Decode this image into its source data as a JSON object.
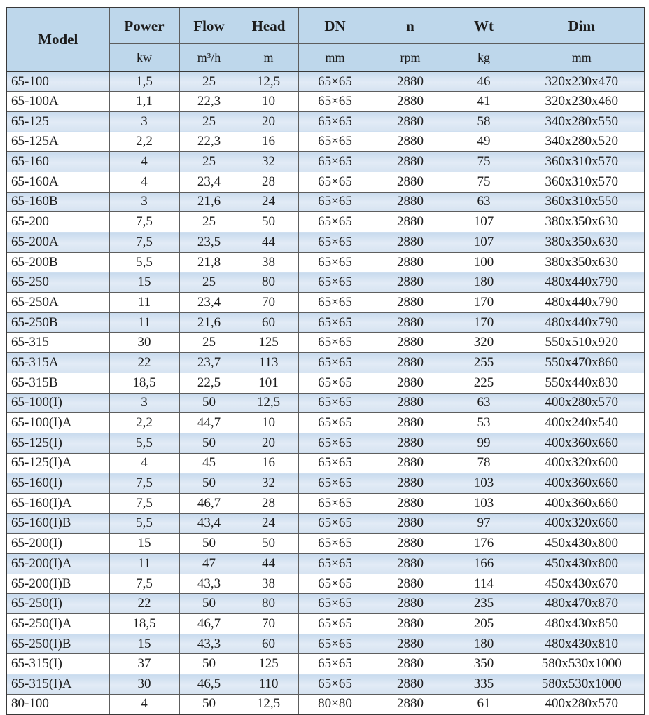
{
  "table": {
    "columns": [
      {
        "label": "Model",
        "unit": ""
      },
      {
        "label": "Power",
        "unit": "kw"
      },
      {
        "label": "Flow",
        "unit": "m³/h"
      },
      {
        "label": "Head",
        "unit": "m"
      },
      {
        "label": "DN",
        "unit": "mm"
      },
      {
        "label": "n",
        "unit": "rpm"
      },
      {
        "label": "Wt",
        "unit": "kg"
      },
      {
        "label": "Dim",
        "unit": "mm"
      }
    ],
    "rows": [
      [
        "65-100",
        "1,5",
        "25",
        "12,5",
        "65×65",
        "2880",
        "46",
        "320x230x470"
      ],
      [
        "65-100A",
        "1,1",
        "22,3",
        "10",
        "65×65",
        "2880",
        "41",
        "320x230x460"
      ],
      [
        "65-125",
        "3",
        "25",
        "20",
        "65×65",
        "2880",
        "58",
        "340x280x550"
      ],
      [
        "65-125A",
        "2,2",
        "22,3",
        "16",
        "65×65",
        "2880",
        "49",
        "340x280x520"
      ],
      [
        "65-160",
        "4",
        "25",
        "32",
        "65×65",
        "2880",
        "75",
        "360x310x570"
      ],
      [
        "65-160A",
        "4",
        "23,4",
        "28",
        "65×65",
        "2880",
        "75",
        "360x310x570"
      ],
      [
        "65-160B",
        "3",
        "21,6",
        "24",
        "65×65",
        "2880",
        "63",
        "360x310x550"
      ],
      [
        "65-200",
        "7,5",
        "25",
        "50",
        "65×65",
        "2880",
        "107",
        "380x350x630"
      ],
      [
        "65-200A",
        "7,5",
        "23,5",
        "44",
        "65×65",
        "2880",
        "107",
        "380x350x630"
      ],
      [
        "65-200B",
        "5,5",
        "21,8",
        "38",
        "65×65",
        "2880",
        "100",
        "380x350x630"
      ],
      [
        "65-250",
        "15",
        "25",
        "80",
        "65×65",
        "2880",
        "180",
        "480x440x790"
      ],
      [
        "65-250A",
        "11",
        "23,4",
        "70",
        "65×65",
        "2880",
        "170",
        "480x440x790"
      ],
      [
        "65-250B",
        "11",
        "21,6",
        "60",
        "65×65",
        "2880",
        "170",
        "480x440x790"
      ],
      [
        "65-315",
        "30",
        "25",
        "125",
        "65×65",
        "2880",
        "320",
        "550x510x920"
      ],
      [
        "65-315A",
        "22",
        "23,7",
        "113",
        "65×65",
        "2880",
        "255",
        "550x470x860"
      ],
      [
        "65-315B",
        "18,5",
        "22,5",
        "101",
        "65×65",
        "2880",
        "225",
        "550x440x830"
      ],
      [
        "65-100(I)",
        "3",
        "50",
        "12,5",
        "65×65",
        "2880",
        "63",
        "400x280x570"
      ],
      [
        "65-100(I)A",
        "2,2",
        "44,7",
        "10",
        "65×65",
        "2880",
        "53",
        "400x240x540"
      ],
      [
        "65-125(I)",
        "5,5",
        "50",
        "20",
        "65×65",
        "2880",
        "99",
        "400x360x660"
      ],
      [
        "65-125(I)A",
        "4",
        "45",
        "16",
        "65×65",
        "2880",
        "78",
        "400x320x600"
      ],
      [
        "65-160(I)",
        "7,5",
        "50",
        "32",
        "65×65",
        "2880",
        "103",
        "400x360x660"
      ],
      [
        "65-160(I)A",
        "7,5",
        "46,7",
        "28",
        "65×65",
        "2880",
        "103",
        "400x360x660"
      ],
      [
        "65-160(I)B",
        "5,5",
        "43,4",
        "24",
        "65×65",
        "2880",
        "97",
        "400x320x660"
      ],
      [
        "65-200(I)",
        "15",
        "50",
        "50",
        "65×65",
        "2880",
        "176",
        "450x430x800"
      ],
      [
        "65-200(I)A",
        "11",
        "47",
        "44",
        "65×65",
        "2880",
        "166",
        "450x430x800"
      ],
      [
        "65-200(I)B",
        "7,5",
        "43,3",
        "38",
        "65×65",
        "2880",
        "114",
        "450x430x670"
      ],
      [
        "65-250(I)",
        "22",
        "50",
        "80",
        "65×65",
        "2880",
        "235",
        "480x470x870"
      ],
      [
        "65-250(I)A",
        "18,5",
        "46,7",
        "70",
        "65×65",
        "2880",
        "205",
        "480x430x850"
      ],
      [
        "65-250(I)B",
        "15",
        "43,3",
        "60",
        "65×65",
        "2880",
        "180",
        "480x430x810"
      ],
      [
        "65-315(I)",
        "37",
        "50",
        "125",
        "65×65",
        "2880",
        "350",
        "580x530x1000"
      ],
      [
        "65-315(I)A",
        "30",
        "46,5",
        "110",
        "65×65",
        "2880",
        "335",
        "580x530x1000"
      ],
      [
        "80-100",
        "4",
        "50",
        "12,5",
        "80×80",
        "2880",
        "61",
        "400x280x570"
      ]
    ],
    "colors": {
      "header_bg": "#bed7eb",
      "row_blue_bg": "#d6e3f1",
      "row_white_bg": "#ffffff",
      "border_outer": "#383838",
      "border_inner": "#5d5d5d",
      "text": "#1c1c1c"
    }
  }
}
